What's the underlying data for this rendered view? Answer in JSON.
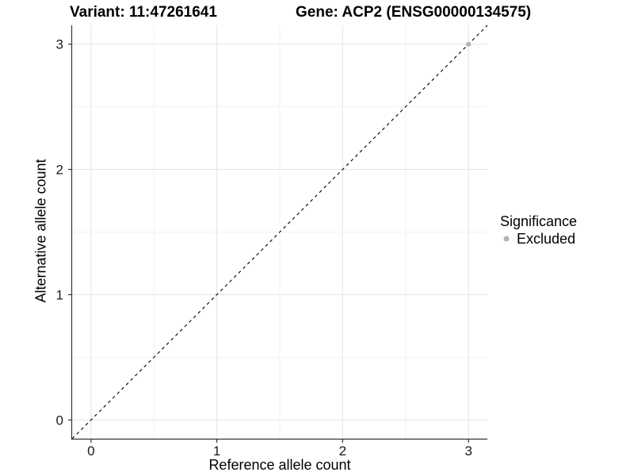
{
  "chart_data": {
    "type": "scatter",
    "title": "Variant: 11:47261641    Gene: ACP2 (ENSG00000134575)",
    "header": {
      "variant": "Variant: 11:47261641",
      "gene": "Gene: ACP2 (ENSG00000134575)"
    },
    "xlabel": "Reference allele count",
    "ylabel": "Alternative allele count",
    "xlim": [
      -0.15,
      3.15
    ],
    "ylim": [
      -0.15,
      3.15
    ],
    "x_ticks": [
      0,
      1,
      2,
      3
    ],
    "x_tick_labels": [
      "0",
      "1",
      "2",
      "3"
    ],
    "y_ticks": [
      0,
      1,
      2,
      3
    ],
    "y_tick_labels": [
      "0",
      "1",
      "2",
      "3"
    ],
    "x_minor_ticks": [
      0.5,
      1.5,
      2.5
    ],
    "y_minor_ticks": [
      0.5,
      1.5,
      2.5
    ],
    "grid": "major+minor",
    "series": [
      {
        "name": "Excluded",
        "color": "#b3b3b3",
        "marker": "circle",
        "points": [
          {
            "x": 3,
            "y": 3
          }
        ]
      }
    ],
    "reference_line": {
      "type": "identity",
      "equation": "y = x",
      "style": "dashed",
      "color": "#000000"
    },
    "legend": {
      "position": "right",
      "title": "Significance",
      "entries": [
        {
          "label": "Excluded",
          "color": "#b3b3b3",
          "marker": "circle"
        }
      ]
    },
    "style": {
      "background": "#ffffff",
      "grid_major": "#e4e4e4",
      "grid_minor": "#f2f2f2",
      "axis_line": "#333333",
      "tick_text": "#1a1a1a"
    }
  }
}
